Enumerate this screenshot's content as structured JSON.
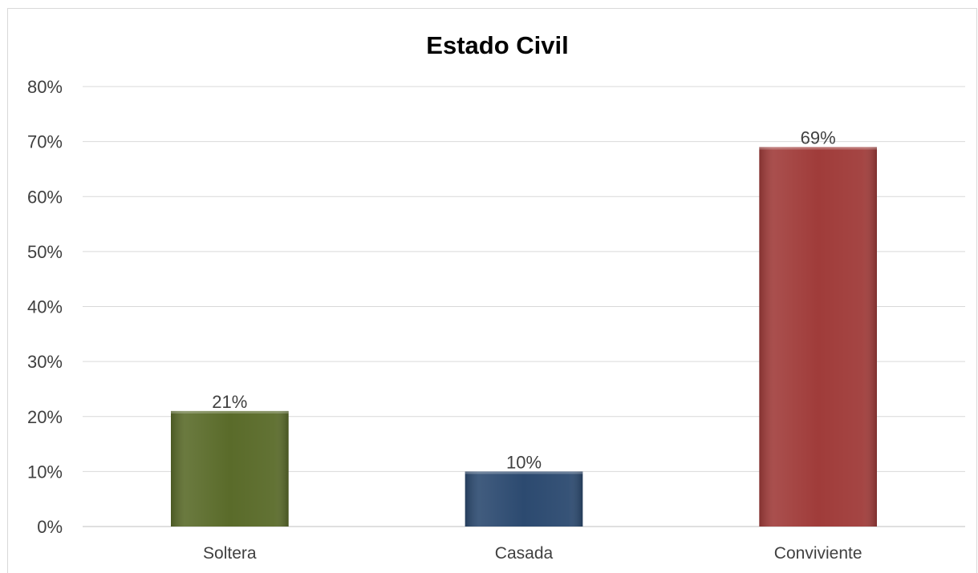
{
  "chart_data": {
    "type": "bar",
    "title": "Estado Civil",
    "xlabel": "",
    "ylabel": "",
    "categories": [
      "Soltera",
      "Casada",
      "Conviviente"
    ],
    "values": [
      21,
      10,
      69
    ],
    "data_labels": [
      "21%",
      "10%",
      "69%"
    ],
    "bar_colors": [
      "#5a6b2a",
      "#2c4a70",
      "#a03c3a"
    ],
    "ylim": [
      0,
      80
    ],
    "yticks": [
      0,
      10,
      20,
      30,
      40,
      50,
      60,
      70,
      80
    ],
    "ytick_labels": [
      "0%",
      "10%",
      "20%",
      "30%",
      "40%",
      "50%",
      "60%",
      "70%",
      "80%"
    ],
    "grid": true,
    "legend": "none"
  }
}
